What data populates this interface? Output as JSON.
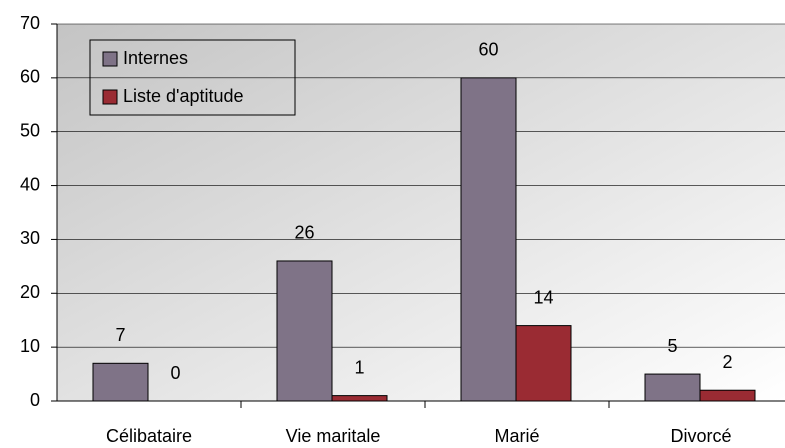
{
  "chart_data": {
    "type": "bar",
    "categories": [
      "Célibataire",
      "Vie maritale",
      "Marié",
      "Divorcé"
    ],
    "series": [
      {
        "name": "Internes",
        "color": "#7f7387",
        "values": [
          7,
          26,
          60,
          5
        ]
      },
      {
        "name": "Liste d'aptitude",
        "color": "#9a2b33",
        "values": [
          0,
          1,
          14,
          2
        ]
      }
    ],
    "ylim": [
      0,
      70
    ],
    "yticks": [
      0,
      10,
      20,
      30,
      40,
      50,
      60,
      70
    ],
    "grid": true,
    "legend": "top-left"
  }
}
